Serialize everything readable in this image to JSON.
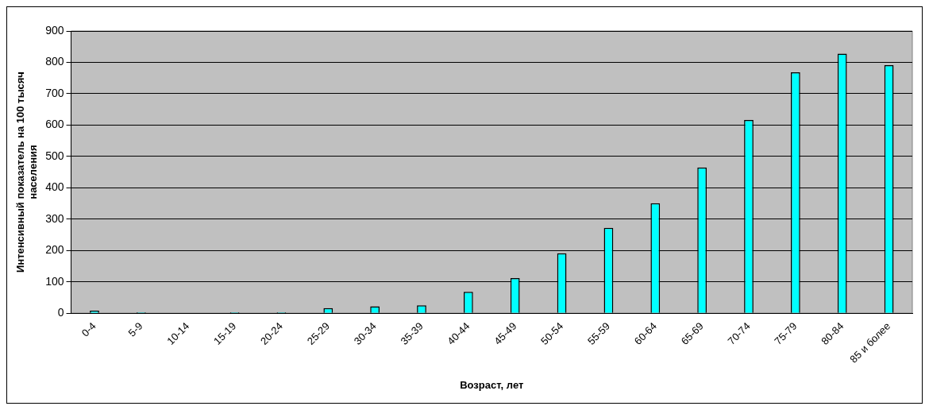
{
  "chart_data": {
    "type": "bar",
    "xlabel": "Возраст, лет",
    "ylabel": "Интенсивный показатель на 100 тысяч населения",
    "categories": [
      "0-4",
      "5-9",
      "10-14",
      "15-19",
      "20-24",
      "25-29",
      "30-34",
      "35-39",
      "40-44",
      "45-49",
      "50-54",
      "55-59",
      "60-64",
      "65-69",
      "70-74",
      "75-79",
      "80-84",
      "85 и более"
    ],
    "values": [
      8,
      3,
      0,
      3,
      3,
      16,
      22,
      25,
      68,
      112,
      191,
      272,
      351,
      465,
      616,
      768,
      828,
      791
    ],
    "color": "#00ffff",
    "ylim": [
      0,
      900
    ],
    "yticks": [
      0,
      100,
      200,
      300,
      400,
      500,
      600,
      700,
      800,
      900
    ],
    "grid": "y",
    "legend": false
  }
}
